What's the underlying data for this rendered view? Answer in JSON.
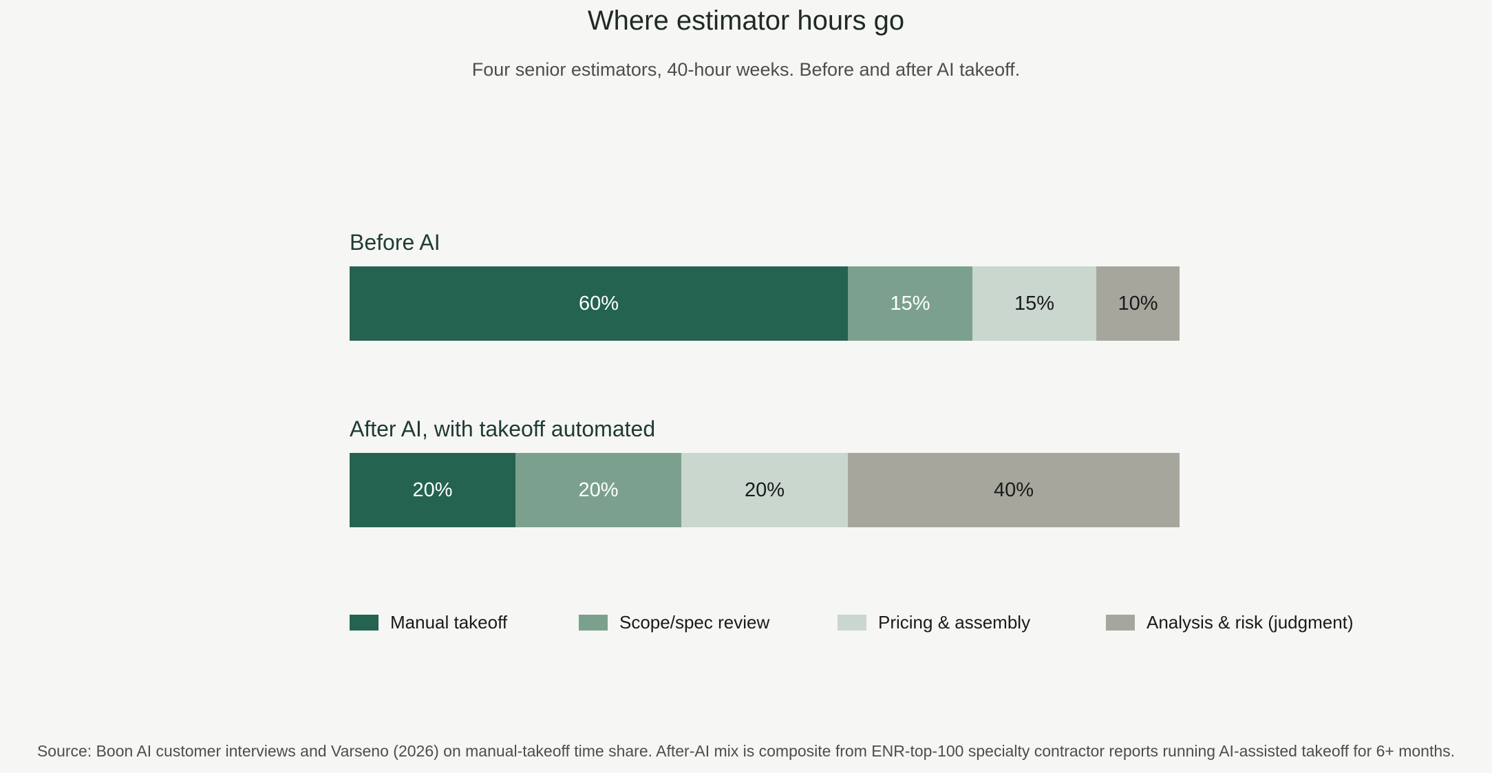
{
  "chart_data": {
    "type": "bar",
    "orientation": "horizontal",
    "stacked": true,
    "normalized": true,
    "title": "Where estimator hours go",
    "subtitle": "Four senior estimators, 40-hour weeks. Before and after AI takeoff.",
    "categories": [
      "Before AI",
      "After AI, with takeoff automated"
    ],
    "series": [
      {
        "name": "Manual takeoff",
        "color": "#236350",
        "label_color": "#ffffff",
        "values": [
          60,
          20
        ],
        "labels": [
          "60%",
          "20%"
        ]
      },
      {
        "name": "Scope/spec review",
        "color": "#7ba18e",
        "label_color": "#ffffff",
        "values": [
          15,
          20
        ],
        "labels": [
          "15%",
          "20%"
        ]
      },
      {
        "name": "Pricing & assembly",
        "color": "#c9d7cf",
        "label_color": "#1a1a1a",
        "values": [
          15,
          20
        ],
        "labels": [
          "15%",
          "20%"
        ]
      },
      {
        "name": "Analysis & risk (judgment)",
        "color": "#a6a69d",
        "label_color": "#1a1a1a",
        "values": [
          10,
          40
        ],
        "labels": [
          "10%",
          "40%"
        ]
      }
    ],
    "xlim": [
      0,
      100
    ],
    "legend_position": "bottom",
    "grid": false,
    "source": "Source: Boon AI customer interviews and Varseno (2026) on manual-takeoff time share. After-AI mix is composite from ENR-top-100 specialty contractor reports running AI-assisted takeoff for 6+ months."
  }
}
